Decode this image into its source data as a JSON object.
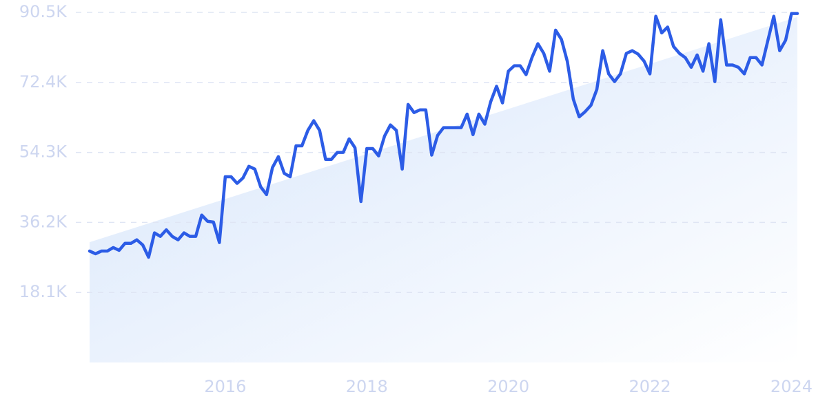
{
  "chart_data": {
    "type": "line",
    "x": [
      2014.083,
      2014.167,
      2014.25,
      2014.333,
      2014.417,
      2014.5,
      2014.583,
      2014.667,
      2014.75,
      2014.833,
      2014.917,
      2015,
      2015.083,
      2015.167,
      2015.25,
      2015.333,
      2015.417,
      2015.5,
      2015.583,
      2015.667,
      2015.75,
      2015.833,
      2015.917,
      2016,
      2016.083,
      2016.167,
      2016.25,
      2016.333,
      2016.417,
      2016.5,
      2016.583,
      2016.667,
      2016.75,
      2016.833,
      2016.917,
      2017,
      2017.083,
      2017.167,
      2017.25,
      2017.333,
      2017.417,
      2017.5,
      2017.583,
      2017.667,
      2017.75,
      2017.833,
      2017.917,
      2018,
      2018.083,
      2018.167,
      2018.25,
      2018.333,
      2018.417,
      2018.5,
      2018.583,
      2018.667,
      2018.75,
      2018.833,
      2018.917,
      2019,
      2019.083,
      2019.167,
      2019.25,
      2019.333,
      2019.417,
      2019.5,
      2019.583,
      2019.667,
      2019.75,
      2019.833,
      2019.917,
      2020,
      2020.083,
      2020.167,
      2020.25,
      2020.333,
      2020.417,
      2020.5,
      2020.583,
      2020.667,
      2020.75,
      2020.833,
      2020.917,
      2021,
      2021.083,
      2021.167,
      2021.25,
      2021.333,
      2021.417,
      2021.5,
      2021.583,
      2021.667,
      2021.75,
      2021.833,
      2021.917,
      2022,
      2022.083,
      2022.167,
      2022.25,
      2022.333,
      2022.417,
      2022.5,
      2022.583,
      2022.667,
      2022.75,
      2022.833,
      2022.917,
      2023,
      2023.083,
      2023.167,
      2023.25,
      2023.333,
      2023.417,
      2023.5,
      2023.583,
      2023.667,
      2023.75,
      2023.833,
      2023.917,
      2024,
      2024.083
    ],
    "series": [
      {
        "color": "#2c5ce6",
        "values": [
          28800,
          28100,
          28800,
          28800,
          29700,
          29000,
          30800,
          30800,
          31700,
          30400,
          27200,
          33500,
          32600,
          34300,
          32600,
          31700,
          33500,
          32600,
          32600,
          38100,
          36500,
          36300,
          31000,
          48000,
          48000,
          46300,
          47700,
          50700,
          50000,
          45400,
          43400,
          50400,
          53200,
          48900,
          48000,
          56000,
          56000,
          60000,
          62500,
          60000,
          52500,
          52500,
          54300,
          54300,
          57800,
          55500,
          41600,
          55300,
          55300,
          53400,
          58500,
          61400,
          60000,
          50000,
          66700,
          64600,
          65300,
          65300,
          53600,
          58700,
          60700,
          60700,
          60700,
          60700,
          64200,
          58900,
          64200,
          61600,
          67400,
          71400,
          67100,
          75300,
          76700,
          76700,
          74400,
          78800,
          82400,
          79900,
          75300,
          85900,
          83500,
          77800,
          68100,
          63500,
          64800,
          66500,
          70600,
          80600,
          74600,
          72600,
          74600,
          79900,
          80600,
          79700,
          77900,
          74600,
          89500,
          85200,
          86700,
          81700,
          79900,
          78800,
          76300,
          79500,
          75300,
          82400,
          72600,
          88600,
          76900,
          76900,
          76300,
          74600,
          78800,
          78800,
          76900,
          83300,
          89500,
          80600,
          83300,
          90200,
          90200
        ]
      }
    ],
    "trend_values": [
      31100,
      89300
    ],
    "xlim": [
      2014.083,
      2024.083
    ],
    "xticks": [
      2016,
      2018,
      2020,
      2022,
      2024
    ],
    "ylim": [
      0,
      90500
    ],
    "yticks": [
      {
        "value": 18100,
        "label": "18.1K"
      },
      {
        "value": 36200,
        "label": "36.2K"
      },
      {
        "value": 54300,
        "label": "54.3K"
      },
      {
        "value": 72400,
        "label": "72.4K"
      },
      {
        "value": 90500,
        "label": "90.5K"
      }
    ],
    "grid": true
  }
}
